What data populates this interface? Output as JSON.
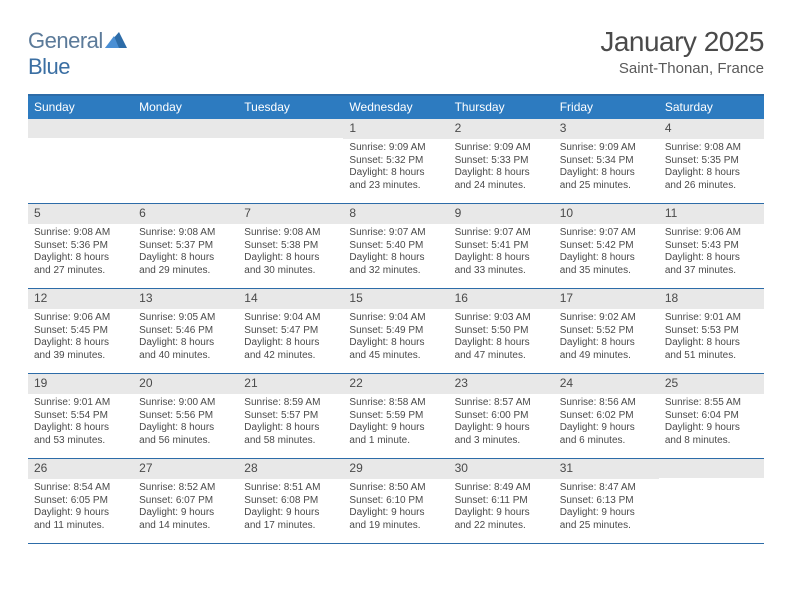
{
  "logo": {
    "general": "General",
    "blue": "Blue"
  },
  "title": "January 2025",
  "location": "Saint-Thonan, France",
  "day_headers": [
    "Sunday",
    "Monday",
    "Tuesday",
    "Wednesday",
    "Thursday",
    "Friday",
    "Saturday"
  ],
  "colors": {
    "header_bg": "#2d7bc0",
    "border": "#2d6ca8",
    "daynum_bg": "#e8e8e8",
    "text": "#4a4a4a",
    "logo_gray": "#5b7a99",
    "logo_blue": "#3b6fa3"
  },
  "weeks": [
    [
      {
        "n": "",
        "sunrise": "",
        "sunset": "",
        "dl1": "",
        "dl2": ""
      },
      {
        "n": "",
        "sunrise": "",
        "sunset": "",
        "dl1": "",
        "dl2": ""
      },
      {
        "n": "",
        "sunrise": "",
        "sunset": "",
        "dl1": "",
        "dl2": ""
      },
      {
        "n": "1",
        "sunrise": "Sunrise: 9:09 AM",
        "sunset": "Sunset: 5:32 PM",
        "dl1": "Daylight: 8 hours",
        "dl2": "and 23 minutes."
      },
      {
        "n": "2",
        "sunrise": "Sunrise: 9:09 AM",
        "sunset": "Sunset: 5:33 PM",
        "dl1": "Daylight: 8 hours",
        "dl2": "and 24 minutes."
      },
      {
        "n": "3",
        "sunrise": "Sunrise: 9:09 AM",
        "sunset": "Sunset: 5:34 PM",
        "dl1": "Daylight: 8 hours",
        "dl2": "and 25 minutes."
      },
      {
        "n": "4",
        "sunrise": "Sunrise: 9:08 AM",
        "sunset": "Sunset: 5:35 PM",
        "dl1": "Daylight: 8 hours",
        "dl2": "and 26 minutes."
      }
    ],
    [
      {
        "n": "5",
        "sunrise": "Sunrise: 9:08 AM",
        "sunset": "Sunset: 5:36 PM",
        "dl1": "Daylight: 8 hours",
        "dl2": "and 27 minutes."
      },
      {
        "n": "6",
        "sunrise": "Sunrise: 9:08 AM",
        "sunset": "Sunset: 5:37 PM",
        "dl1": "Daylight: 8 hours",
        "dl2": "and 29 minutes."
      },
      {
        "n": "7",
        "sunrise": "Sunrise: 9:08 AM",
        "sunset": "Sunset: 5:38 PM",
        "dl1": "Daylight: 8 hours",
        "dl2": "and 30 minutes."
      },
      {
        "n": "8",
        "sunrise": "Sunrise: 9:07 AM",
        "sunset": "Sunset: 5:40 PM",
        "dl1": "Daylight: 8 hours",
        "dl2": "and 32 minutes."
      },
      {
        "n": "9",
        "sunrise": "Sunrise: 9:07 AM",
        "sunset": "Sunset: 5:41 PM",
        "dl1": "Daylight: 8 hours",
        "dl2": "and 33 minutes."
      },
      {
        "n": "10",
        "sunrise": "Sunrise: 9:07 AM",
        "sunset": "Sunset: 5:42 PM",
        "dl1": "Daylight: 8 hours",
        "dl2": "and 35 minutes."
      },
      {
        "n": "11",
        "sunrise": "Sunrise: 9:06 AM",
        "sunset": "Sunset: 5:43 PM",
        "dl1": "Daylight: 8 hours",
        "dl2": "and 37 minutes."
      }
    ],
    [
      {
        "n": "12",
        "sunrise": "Sunrise: 9:06 AM",
        "sunset": "Sunset: 5:45 PM",
        "dl1": "Daylight: 8 hours",
        "dl2": "and 39 minutes."
      },
      {
        "n": "13",
        "sunrise": "Sunrise: 9:05 AM",
        "sunset": "Sunset: 5:46 PM",
        "dl1": "Daylight: 8 hours",
        "dl2": "and 40 minutes."
      },
      {
        "n": "14",
        "sunrise": "Sunrise: 9:04 AM",
        "sunset": "Sunset: 5:47 PM",
        "dl1": "Daylight: 8 hours",
        "dl2": "and 42 minutes."
      },
      {
        "n": "15",
        "sunrise": "Sunrise: 9:04 AM",
        "sunset": "Sunset: 5:49 PM",
        "dl1": "Daylight: 8 hours",
        "dl2": "and 45 minutes."
      },
      {
        "n": "16",
        "sunrise": "Sunrise: 9:03 AM",
        "sunset": "Sunset: 5:50 PM",
        "dl1": "Daylight: 8 hours",
        "dl2": "and 47 minutes."
      },
      {
        "n": "17",
        "sunrise": "Sunrise: 9:02 AM",
        "sunset": "Sunset: 5:52 PM",
        "dl1": "Daylight: 8 hours",
        "dl2": "and 49 minutes."
      },
      {
        "n": "18",
        "sunrise": "Sunrise: 9:01 AM",
        "sunset": "Sunset: 5:53 PM",
        "dl1": "Daylight: 8 hours",
        "dl2": "and 51 minutes."
      }
    ],
    [
      {
        "n": "19",
        "sunrise": "Sunrise: 9:01 AM",
        "sunset": "Sunset: 5:54 PM",
        "dl1": "Daylight: 8 hours",
        "dl2": "and 53 minutes."
      },
      {
        "n": "20",
        "sunrise": "Sunrise: 9:00 AM",
        "sunset": "Sunset: 5:56 PM",
        "dl1": "Daylight: 8 hours",
        "dl2": "and 56 minutes."
      },
      {
        "n": "21",
        "sunrise": "Sunrise: 8:59 AM",
        "sunset": "Sunset: 5:57 PM",
        "dl1": "Daylight: 8 hours",
        "dl2": "and 58 minutes."
      },
      {
        "n": "22",
        "sunrise": "Sunrise: 8:58 AM",
        "sunset": "Sunset: 5:59 PM",
        "dl1": "Daylight: 9 hours",
        "dl2": "and 1 minute."
      },
      {
        "n": "23",
        "sunrise": "Sunrise: 8:57 AM",
        "sunset": "Sunset: 6:00 PM",
        "dl1": "Daylight: 9 hours",
        "dl2": "and 3 minutes."
      },
      {
        "n": "24",
        "sunrise": "Sunrise: 8:56 AM",
        "sunset": "Sunset: 6:02 PM",
        "dl1": "Daylight: 9 hours",
        "dl2": "and 6 minutes."
      },
      {
        "n": "25",
        "sunrise": "Sunrise: 8:55 AM",
        "sunset": "Sunset: 6:04 PM",
        "dl1": "Daylight: 9 hours",
        "dl2": "and 8 minutes."
      }
    ],
    [
      {
        "n": "26",
        "sunrise": "Sunrise: 8:54 AM",
        "sunset": "Sunset: 6:05 PM",
        "dl1": "Daylight: 9 hours",
        "dl2": "and 11 minutes."
      },
      {
        "n": "27",
        "sunrise": "Sunrise: 8:52 AM",
        "sunset": "Sunset: 6:07 PM",
        "dl1": "Daylight: 9 hours",
        "dl2": "and 14 minutes."
      },
      {
        "n": "28",
        "sunrise": "Sunrise: 8:51 AM",
        "sunset": "Sunset: 6:08 PM",
        "dl1": "Daylight: 9 hours",
        "dl2": "and 17 minutes."
      },
      {
        "n": "29",
        "sunrise": "Sunrise: 8:50 AM",
        "sunset": "Sunset: 6:10 PM",
        "dl1": "Daylight: 9 hours",
        "dl2": "and 19 minutes."
      },
      {
        "n": "30",
        "sunrise": "Sunrise: 8:49 AM",
        "sunset": "Sunset: 6:11 PM",
        "dl1": "Daylight: 9 hours",
        "dl2": "and 22 minutes."
      },
      {
        "n": "31",
        "sunrise": "Sunrise: 8:47 AM",
        "sunset": "Sunset: 6:13 PM",
        "dl1": "Daylight: 9 hours",
        "dl2": "and 25 minutes."
      },
      {
        "n": "",
        "sunrise": "",
        "sunset": "",
        "dl1": "",
        "dl2": ""
      }
    ]
  ]
}
